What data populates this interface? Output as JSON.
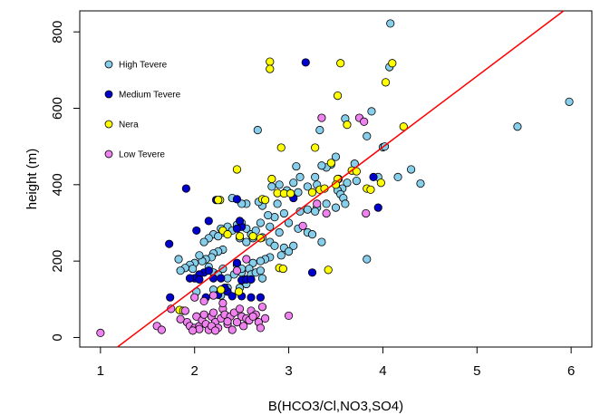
{
  "chart_data": {
    "type": "scatter",
    "xlabel": "B(HCO3/Cl,NO3,SO4)",
    "ylabel": "height (m)",
    "xlim": [
      0.78,
      6.22
    ],
    "ylim": [
      -25,
      855
    ],
    "x_ticks": [
      1,
      2,
      3,
      4,
      5,
      6
    ],
    "y_ticks": [
      0,
      200,
      400,
      600,
      800
    ],
    "x_tick_labels": [
      "1",
      "2",
      "3",
      "4",
      "5",
      "6"
    ],
    "y_tick_labels": [
      "0",
      "200",
      "400",
      "600",
      "800"
    ],
    "grid": false,
    "legend_position": "top-left",
    "regression_line": {
      "color": "#ff0000",
      "x1": 1.18,
      "y1": -25,
      "x2": 5.92,
      "y2": 855
    },
    "series": [
      {
        "name": "High Tevere",
        "color": "#87ceeb",
        "points": [
          [
            4.08,
            822
          ],
          [
            5.98,
            617
          ],
          [
            5.43,
            552
          ],
          [
            4.07,
            708
          ],
          [
            3.88,
            592
          ],
          [
            3.83,
            527
          ],
          [
            3.6,
            573
          ],
          [
            3.33,
            543
          ],
          [
            2.67,
            543
          ],
          [
            4.0,
            498
          ],
          [
            4.02,
            500
          ],
          [
            3.5,
            473
          ],
          [
            3.45,
            453
          ],
          [
            3.7,
            455
          ],
          [
            3.4,
            445
          ],
          [
            3.35,
            450
          ],
          [
            3.08,
            448
          ],
          [
            3.12,
            420
          ],
          [
            3.28,
            420
          ],
          [
            3.53,
            415
          ],
          [
            4.3,
            440
          ],
          [
            4.4,
            403
          ],
          [
            4.16,
            420
          ],
          [
            3.95,
            420
          ],
          [
            3.72,
            410
          ],
          [
            3.62,
            405
          ],
          [
            3.57,
            390
          ],
          [
            3.52,
            385
          ],
          [
            3.3,
            400
          ],
          [
            3.2,
            395
          ],
          [
            3.05,
            405
          ],
          [
            2.9,
            400
          ],
          [
            2.82,
            395
          ],
          [
            2.98,
            385
          ],
          [
            3.1,
            380
          ],
          [
            3.55,
            375
          ],
          [
            3.58,
            365
          ],
          [
            3.6,
            350
          ],
          [
            3.5,
            340
          ],
          [
            3.4,
            350
          ],
          [
            3.3,
            340
          ],
          [
            3.28,
            330
          ],
          [
            3.2,
            335
          ],
          [
            3.12,
            330
          ],
          [
            2.88,
            350
          ],
          [
            2.95,
            325
          ],
          [
            2.85,
            315
          ],
          [
            2.78,
            320
          ],
          [
            2.72,
            345
          ],
          [
            2.68,
            355
          ],
          [
            2.55,
            350
          ],
          [
            2.7,
            300
          ],
          [
            2.8,
            290
          ],
          [
            2.9,
            275
          ],
          [
            3.0,
            300
          ],
          [
            3.1,
            285
          ],
          [
            3.2,
            275
          ],
          [
            3.25,
            270
          ],
          [
            3.35,
            250
          ],
          [
            2.4,
            365
          ],
          [
            2.5,
            350
          ],
          [
            2.35,
            290
          ],
          [
            2.28,
            285
          ],
          [
            2.2,
            270
          ],
          [
            2.3,
            275
          ],
          [
            2.15,
            260
          ],
          [
            2.1,
            250
          ],
          [
            2.25,
            265
          ],
          [
            2.4,
            280
          ],
          [
            2.48,
            260
          ],
          [
            2.55,
            250
          ],
          [
            2.62,
            260
          ],
          [
            2.45,
            295
          ],
          [
            2.5,
            300
          ],
          [
            2.55,
            285
          ],
          [
            2.6,
            270
          ],
          [
            2.65,
            280
          ],
          [
            2.72,
            262
          ],
          [
            2.8,
            250
          ],
          [
            2.85,
            240
          ],
          [
            2.95,
            235
          ],
          [
            3.05,
            240
          ],
          [
            3.0,
            225
          ],
          [
            2.92,
            215
          ],
          [
            2.8,
            210
          ],
          [
            2.75,
            205
          ],
          [
            2.7,
            200
          ],
          [
            2.62,
            195
          ],
          [
            2.58,
            180
          ],
          [
            2.5,
            170
          ],
          [
            2.3,
            230
          ],
          [
            2.25,
            225
          ],
          [
            2.2,
            220
          ],
          [
            2.18,
            210
          ],
          [
            2.12,
            205
          ],
          [
            2.08,
            200
          ],
          [
            2.0,
            195
          ],
          [
            1.95,
            190
          ],
          [
            1.9,
            182
          ],
          [
            1.85,
            175
          ],
          [
            1.83,
            205
          ],
          [
            2.15,
            185
          ],
          [
            2.2,
            170
          ],
          [
            2.25,
            165
          ],
          [
            2.35,
            155
          ],
          [
            2.42,
            165
          ],
          [
            2.45,
            190
          ],
          [
            2.5,
            180
          ],
          [
            2.3,
            180
          ],
          [
            2.05,
            215
          ],
          [
            1.98,
            180
          ],
          [
            2.6,
            165
          ],
          [
            2.65,
            170
          ],
          [
            2.7,
            175
          ],
          [
            2.72,
            155
          ],
          [
            2.55,
            140
          ],
          [
            2.48,
            130
          ],
          [
            2.35,
            130
          ],
          [
            2.28,
            110
          ],
          [
            2.2,
            125
          ],
          [
            2.02,
            120
          ],
          [
            2.52,
            152
          ],
          [
            3.83,
            205
          ]
        ]
      },
      {
        "name": "Medium Tevere",
        "color": "#0000cd",
        "points": [
          [
            3.18,
            720
          ],
          [
            1.91,
            390
          ],
          [
            3.9,
            420
          ],
          [
            3.95,
            340
          ],
          [
            3.05,
            365
          ],
          [
            2.45,
            362
          ],
          [
            2.23,
            360
          ],
          [
            2.5,
            290
          ],
          [
            2.45,
            285
          ],
          [
            2.02,
            280
          ],
          [
            1.73,
            245
          ],
          [
            2.15,
            305
          ],
          [
            2.48,
            305
          ],
          [
            2.1,
            170
          ],
          [
            2.05,
            165
          ],
          [
            2.0,
            155
          ],
          [
            1.95,
            155
          ],
          [
            2.2,
            155
          ],
          [
            2.28,
            155
          ],
          [
            2.5,
            150
          ],
          [
            2.55,
            152
          ],
          [
            2.6,
            152
          ],
          [
            2.45,
            195
          ],
          [
            3.25,
            170
          ],
          [
            2.35,
            120
          ],
          [
            2.25,
            112
          ],
          [
            2.12,
            105
          ],
          [
            2.4,
            108
          ],
          [
            2.5,
            108
          ],
          [
            2.6,
            105
          ],
          [
            2.7,
            105
          ],
          [
            1.74,
            105
          ],
          [
            2.32,
            130
          ],
          [
            2.05,
            152
          ],
          [
            2.15,
            175
          ]
        ]
      },
      {
        "name": "Nera",
        "color": "#ffff00",
        "points": [
          [
            2.8,
            722
          ],
          [
            2.8,
            703
          ],
          [
            3.55,
            718
          ],
          [
            4.1,
            718
          ],
          [
            4.03,
            668
          ],
          [
            3.52,
            633
          ],
          [
            4.22,
            552
          ],
          [
            3.62,
            557
          ],
          [
            2.92,
            497
          ],
          [
            3.28,
            497
          ],
          [
            3.45,
            457
          ],
          [
            3.67,
            437
          ],
          [
            3.72,
            435
          ],
          [
            3.52,
            415
          ],
          [
            3.5,
            400
          ],
          [
            2.82,
            415
          ],
          [
            2.88,
            378
          ],
          [
            2.95,
            377
          ],
          [
            3.02,
            377
          ],
          [
            3.25,
            380
          ],
          [
            3.33,
            387
          ],
          [
            3.38,
            390
          ],
          [
            3.83,
            390
          ],
          [
            3.87,
            387
          ],
          [
            3.98,
            405
          ],
          [
            2.45,
            440
          ],
          [
            2.27,
            360
          ],
          [
            2.25,
            360
          ],
          [
            2.72,
            362
          ],
          [
            2.75,
            360
          ],
          [
            2.62,
            265
          ],
          [
            2.7,
            260
          ],
          [
            2.3,
            280
          ],
          [
            2.35,
            270
          ],
          [
            2.48,
            265
          ],
          [
            2.9,
            182
          ],
          [
            2.94,
            180
          ],
          [
            3.42,
            177
          ],
          [
            2.28,
            125
          ],
          [
            2.47,
            120
          ],
          [
            1.84,
            72
          ],
          [
            1.88,
            70
          ]
        ]
      },
      {
        "name": "Low Tevere",
        "color": "#ee82ee",
        "points": [
          [
            1.0,
            12
          ],
          [
            1.6,
            30
          ],
          [
            1.65,
            20
          ],
          [
            1.75,
            75
          ],
          [
            1.9,
            70
          ],
          [
            1.92,
            40
          ],
          [
            1.95,
            30
          ],
          [
            2.0,
            25
          ],
          [
            2.02,
            55
          ],
          [
            2.05,
            30
          ],
          [
            2.08,
            45
          ],
          [
            2.1,
            60
          ],
          [
            2.12,
            35
          ],
          [
            2.15,
            20
          ],
          [
            2.18,
            55
          ],
          [
            2.2,
            65
          ],
          [
            2.22,
            40
          ],
          [
            2.25,
            25
          ],
          [
            2.28,
            50
          ],
          [
            2.3,
            75
          ],
          [
            2.32,
            60
          ],
          [
            2.35,
            35
          ],
          [
            2.38,
            55
          ],
          [
            2.4,
            20
          ],
          [
            2.42,
            65
          ],
          [
            2.45,
            40
          ],
          [
            2.48,
            75
          ],
          [
            2.5,
            55
          ],
          [
            2.52,
            30
          ],
          [
            2.55,
            50
          ],
          [
            2.58,
            45
          ],
          [
            2.6,
            70
          ],
          [
            2.65,
            60
          ],
          [
            2.68,
            40
          ],
          [
            2.7,
            25
          ],
          [
            2.72,
            80
          ],
          [
            2.75,
            50
          ],
          [
            2.0,
            105
          ],
          [
            2.1,
            95
          ],
          [
            2.2,
            110
          ],
          [
            2.3,
            90
          ],
          [
            2.45,
            175
          ],
          [
            2.55,
            205
          ],
          [
            3.0,
            57
          ],
          [
            3.35,
            575
          ],
          [
            3.75,
            575
          ],
          [
            3.8,
            565
          ],
          [
            3.4,
            325
          ],
          [
            3.82,
            325
          ],
          [
            3.15,
            292
          ],
          [
            3.3,
            350
          ],
          [
            2.18,
            30
          ],
          [
            2.05,
            22
          ],
          [
            1.98,
            18
          ],
          [
            2.22,
            18
          ],
          [
            2.35,
            42
          ],
          [
            1.85,
            48
          ],
          [
            2.62,
            55
          ]
        ]
      }
    ]
  }
}
